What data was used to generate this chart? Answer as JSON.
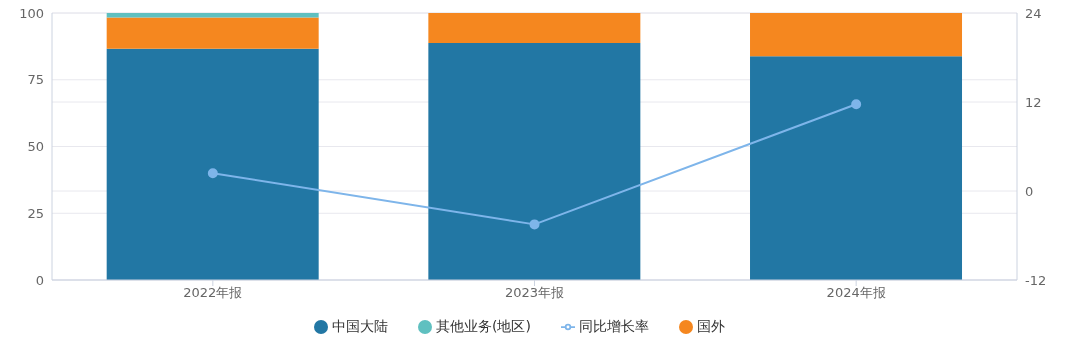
{
  "chart_data": {
    "type": "bar",
    "stacked": true,
    "categories": [
      "2022年报",
      "2023年报",
      "2024年报"
    ],
    "series": [
      {
        "name": "中国大陆",
        "color": "#2277a4",
        "values": [
          86.6,
          88.8,
          83.8
        ]
      },
      {
        "name": "国外",
        "color": "#f5871f",
        "values": [
          11.7,
          11.2,
          16.2
        ]
      },
      {
        "name": "其他业务(地区)",
        "color": "#5fc0c0",
        "values": [
          1.7,
          null,
          null
        ]
      },
      {
        "name": "同比增长率",
        "type": "line",
        "axis": "y2",
        "color": "#7eb5ea",
        "values": [
          2.4,
          -4.5,
          11.7
        ]
      }
    ],
    "ylim": [
      0,
      100
    ],
    "yticks": [
      0,
      25,
      50,
      75,
      100
    ],
    "y2lim": [
      -12,
      24
    ],
    "y2ticks": [
      -12,
      0,
      12,
      24
    ],
    "grid": "y",
    "legend": "bottom",
    "marker": "circle"
  }
}
